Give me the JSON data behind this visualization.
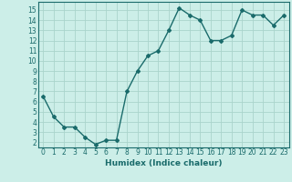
{
  "x": [
    0,
    1,
    2,
    3,
    4,
    5,
    6,
    7,
    8,
    9,
    10,
    11,
    12,
    13,
    14,
    15,
    16,
    17,
    18,
    19,
    20,
    21,
    22,
    23
  ],
  "y": [
    6.5,
    4.5,
    3.5,
    3.5,
    2.5,
    1.8,
    2.2,
    2.2,
    7.0,
    9.0,
    10.5,
    11.0,
    13.0,
    15.2,
    14.5,
    14.0,
    12.0,
    12.0,
    12.5,
    15.0,
    14.5,
    14.5,
    13.5,
    14.5
  ],
  "line_color": "#1a6b6b",
  "marker": "D",
  "markersize": 2.0,
  "linewidth": 1.0,
  "bg_color": "#cceee8",
  "grid_color": "#aad4cc",
  "xlabel": "Humidex (Indice chaleur)",
  "xlim": [
    -0.5,
    23.5
  ],
  "ylim": [
    1.5,
    15.8
  ],
  "yticks": [
    2,
    3,
    4,
    5,
    6,
    7,
    8,
    9,
    10,
    11,
    12,
    13,
    14,
    15
  ],
  "xticks": [
    0,
    1,
    2,
    3,
    4,
    5,
    6,
    7,
    8,
    9,
    10,
    11,
    12,
    13,
    14,
    15,
    16,
    17,
    18,
    19,
    20,
    21,
    22,
    23
  ],
  "xtick_labels": [
    "0",
    "1",
    "2",
    "3",
    "4",
    "5",
    "6",
    "7",
    "8",
    "9",
    "10",
    "11",
    "12",
    "13",
    "14",
    "15",
    "16",
    "17",
    "18",
    "19",
    "20",
    "21",
    "22",
    "23"
  ],
  "tick_fontsize": 5.5,
  "xlabel_fontsize": 6.5
}
